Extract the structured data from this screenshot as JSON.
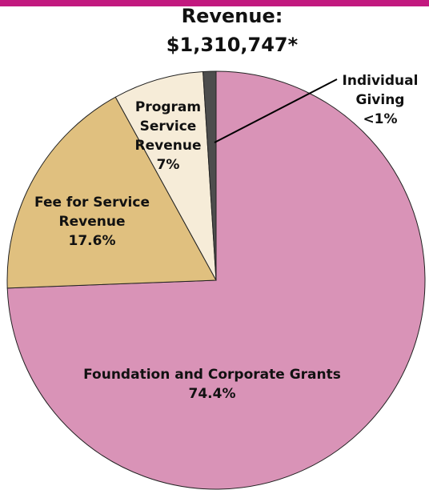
{
  "chart_data": {
    "type": "pie",
    "title": "Revenue: $1,310,747*",
    "categories": [
      "Foundation and Corporate Grants",
      "Fee for Service Revenue",
      "Program Service Revenue",
      "Individual Giving"
    ],
    "values": [
      74.4,
      17.6,
      7,
      1
    ],
    "value_labels": [
      "74.4%",
      "17.6%",
      "7%",
      "<1%"
    ],
    "colors": [
      "#d993b7",
      "#e0c07f",
      "#f6ecd8",
      "#4d4d4d"
    ]
  }
}
